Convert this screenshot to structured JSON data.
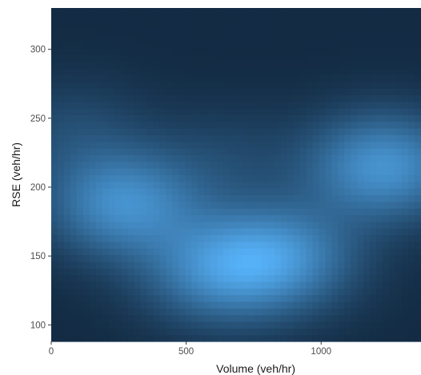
{
  "chart_data": {
    "type": "heatmap",
    "subtype": "2d-density",
    "xlabel": "Volume (veh/hr)",
    "ylabel": "RSE (veh/hr)",
    "xlim": [
      0,
      1370
    ],
    "ylim": [
      88,
      330
    ],
    "x_ticks": [
      0,
      500,
      1000
    ],
    "y_ticks": [
      100,
      150,
      200,
      250,
      300
    ],
    "grid": false,
    "legend": "none",
    "colors": {
      "low": "#132b43",
      "high": "#56b1f7"
    },
    "density_peaks": [
      {
        "x": 270,
        "y": 188,
        "weight": 0.95
      },
      {
        "x": 620,
        "y": 140,
        "weight": 0.8
      },
      {
        "x": 850,
        "y": 150,
        "weight": 0.85
      },
      {
        "x": 1230,
        "y": 215,
        "weight": 1.0
      },
      {
        "x": 80,
        "y": 240,
        "weight": 0.25
      },
      {
        "x": 650,
        "y": 220,
        "weight": 0.2
      }
    ]
  }
}
